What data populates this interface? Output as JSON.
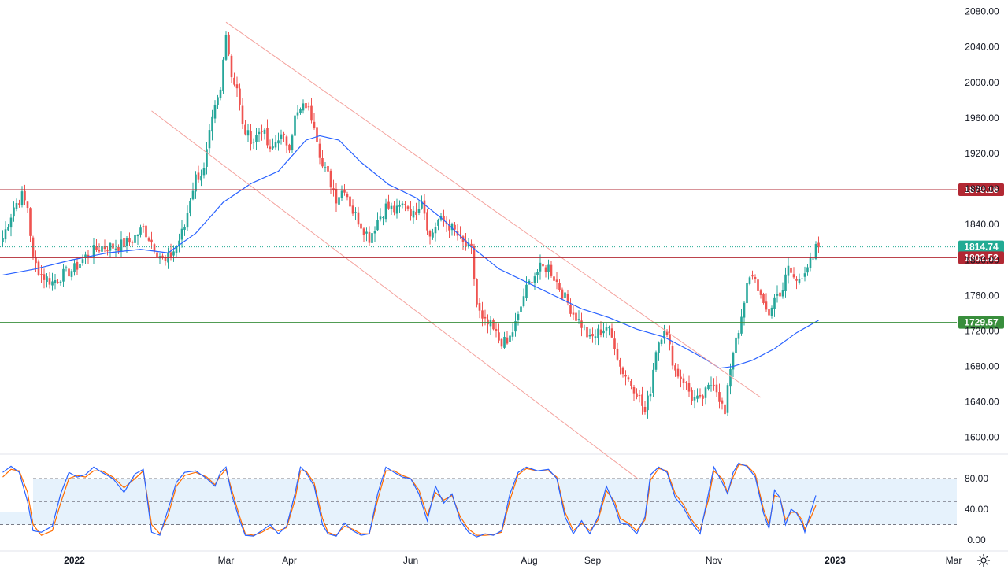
{
  "chart_data": {
    "type": "candlestick",
    "y_ticks": [
      1600,
      1640,
      1680,
      1720,
      1760,
      1800,
      1840,
      1880,
      1920,
      1960,
      2000,
      2040,
      2080
    ],
    "y_tick_labels": [
      "1600.00",
      "1640.00",
      "1680.00",
      "1720.00",
      "1760.00",
      "1800.00",
      "1840.00",
      "1880.00",
      "1920.00",
      "1960.00",
      "2000.00",
      "2040.00",
      "2080.00"
    ],
    "ylim": [
      1582,
      2093
    ],
    "x_labels": [
      {
        "label": "2022",
        "bold": true,
        "index": 26
      },
      {
        "label": "Mar",
        "bold": false,
        "index": 81
      },
      {
        "label": "Apr",
        "bold": false,
        "index": 104
      },
      {
        "label": "Jun",
        "bold": false,
        "index": 148
      },
      {
        "label": "Aug",
        "bold": false,
        "index": 191
      },
      {
        "label": "Sep",
        "bold": false,
        "index": 214
      },
      {
        "label": "Nov",
        "bold": false,
        "index": 258
      },
      {
        "label": "2023",
        "bold": true,
        "index": 302
      },
      {
        "label": "Mar",
        "bold": false,
        "index": 345
      }
    ],
    "anchors": [
      [
        0,
        1825
      ],
      [
        4,
        1860
      ],
      [
        7,
        1872
      ],
      [
        9,
        1860
      ],
      [
        11,
        1800
      ],
      [
        14,
        1783
      ],
      [
        18,
        1775
      ],
      [
        21,
        1782
      ],
      [
        26,
        1790
      ],
      [
        31,
        1807
      ],
      [
        36,
        1815
      ],
      [
        41,
        1815
      ],
      [
        46,
        1820
      ],
      [
        51,
        1836
      ],
      [
        56,
        1810
      ],
      [
        59,
        1797
      ],
      [
        63,
        1815
      ],
      [
        66,
        1838
      ],
      [
        68,
        1870
      ],
      [
        70,
        1893
      ],
      [
        73,
        1900
      ],
      [
        75,
        1940
      ],
      [
        77,
        1970
      ],
      [
        79,
        1990
      ],
      [
        81,
        2060
      ],
      [
        83,
        2008
      ],
      [
        85,
        1995
      ],
      [
        87,
        1950
      ],
      [
        89,
        1940
      ],
      [
        91,
        1935
      ],
      [
        94,
        1950
      ],
      [
        97,
        1920
      ],
      [
        100,
        1940
      ],
      [
        104,
        1930
      ],
      [
        106,
        1960
      ],
      [
        110,
        1975
      ],
      [
        113,
        1955
      ],
      [
        116,
        1905
      ],
      [
        118,
        1895
      ],
      [
        121,
        1870
      ],
      [
        124,
        1882
      ],
      [
        127,
        1855
      ],
      [
        130,
        1840
      ],
      [
        133,
        1825
      ],
      [
        136,
        1845
      ],
      [
        139,
        1860
      ],
      [
        143,
        1855
      ],
      [
        146,
        1865
      ],
      [
        149,
        1850
      ],
      [
        152,
        1870
      ],
      [
        155,
        1825
      ],
      [
        158,
        1845
      ],
      [
        161,
        1842
      ],
      [
        164,
        1832
      ],
      [
        167,
        1818
      ],
      [
        170,
        1810
      ],
      [
        172,
        1750
      ],
      [
        174,
        1730
      ],
      [
        177,
        1725
      ],
      [
        180,
        1710
      ],
      [
        183,
        1705
      ],
      [
        185,
        1720
      ],
      [
        187,
        1735
      ],
      [
        189,
        1760
      ],
      [
        192,
        1780
      ],
      [
        195,
        1790
      ],
      [
        198,
        1792
      ],
      [
        201,
        1775
      ],
      [
        204,
        1757
      ],
      [
        207,
        1740
      ],
      [
        210,
        1727
      ],
      [
        213,
        1710
      ],
      [
        216,
        1718
      ],
      [
        219,
        1725
      ],
      [
        222,
        1705
      ],
      [
        224,
        1680
      ],
      [
        227,
        1665
      ],
      [
        230,
        1652
      ],
      [
        233,
        1628
      ],
      [
        235,
        1655
      ],
      [
        237,
        1700
      ],
      [
        240,
        1725
      ],
      [
        242,
        1700
      ],
      [
        244,
        1675
      ],
      [
        247,
        1665
      ],
      [
        250,
        1645
      ],
      [
        253,
        1640
      ],
      [
        256,
        1655
      ],
      [
        258,
        1665
      ],
      [
        260,
        1645
      ],
      [
        262,
        1625
      ],
      [
        264,
        1680
      ],
      [
        266,
        1715
      ],
      [
        268,
        1730
      ],
      [
        270,
        1770
      ],
      [
        272,
        1785
      ],
      [
        274,
        1770
      ],
      [
        276,
        1745
      ],
      [
        278,
        1740
      ],
      [
        280,
        1757
      ],
      [
        283,
        1768
      ],
      [
        285,
        1790
      ],
      [
        288,
        1775
      ],
      [
        291,
        1790
      ],
      [
        293,
        1797
      ],
      [
        294,
        1798
      ],
      [
        295,
        1812
      ],
      [
        296,
        1815
      ]
    ],
    "ma_points": [
      [
        0,
        1783
      ],
      [
        12,
        1790
      ],
      [
        25,
        1800
      ],
      [
        38,
        1808
      ],
      [
        50,
        1812
      ],
      [
        60,
        1808
      ],
      [
        70,
        1830
      ],
      [
        80,
        1865
      ],
      [
        90,
        1886
      ],
      [
        100,
        1900
      ],
      [
        110,
        1935
      ],
      [
        115,
        1940
      ],
      [
        122,
        1935
      ],
      [
        130,
        1910
      ],
      [
        140,
        1885
      ],
      [
        150,
        1870
      ],
      [
        160,
        1845
      ],
      [
        170,
        1815
      ],
      [
        180,
        1790
      ],
      [
        190,
        1775
      ],
      [
        200,
        1760
      ],
      [
        210,
        1745
      ],
      [
        220,
        1735
      ],
      [
        230,
        1722
      ],
      [
        240,
        1713
      ],
      [
        248,
        1700
      ],
      [
        255,
        1688
      ],
      [
        260,
        1678
      ],
      [
        265,
        1680
      ],
      [
        272,
        1687
      ],
      [
        280,
        1700
      ],
      [
        288,
        1718
      ],
      [
        296,
        1732
      ]
    ],
    "levels": [
      {
        "label": "1879.16",
        "value": 1879.16,
        "color": "#b22833"
      },
      {
        "label": "1814.74",
        "value": 1814.74,
        "color": "#22ab94"
      },
      {
        "label": "1802.52",
        "value": 1802.52,
        "color": "#b22833"
      },
      {
        "label": "1729.57",
        "value": 1729.57,
        "color": "#388e3c"
      }
    ],
    "channel": {
      "upper": [
        [
          81,
          2068
        ],
        [
          275,
          1645
        ]
      ],
      "lower": [
        [
          54,
          1968
        ],
        [
          231,
          1552
        ]
      ]
    },
    "stochastic": {
      "y_ticks": [
        0,
        40,
        80
      ],
      "y_tick_labels": [
        "0.00",
        "40.00",
        "80.00"
      ],
      "bands": [
        20,
        50,
        80
      ],
      "k_points": [
        [
          0,
          88
        ],
        [
          3,
          96
        ],
        [
          6,
          88
        ],
        [
          9,
          50
        ],
        [
          11,
          12
        ],
        [
          14,
          10
        ],
        [
          18,
          18
        ],
        [
          21,
          60
        ],
        [
          24,
          88
        ],
        [
          27,
          82
        ],
        [
          30,
          85
        ],
        [
          33,
          95
        ],
        [
          36,
          88
        ],
        [
          40,
          80
        ],
        [
          44,
          62
        ],
        [
          48,
          86
        ],
        [
          51,
          92
        ],
        [
          54,
          10
        ],
        [
          57,
          6
        ],
        [
          60,
          40
        ],
        [
          63,
          75
        ],
        [
          66,
          88
        ],
        [
          70,
          90
        ],
        [
          74,
          80
        ],
        [
          77,
          70
        ],
        [
          79,
          88
        ],
        [
          81,
          95
        ],
        [
          83,
          60
        ],
        [
          86,
          25
        ],
        [
          88,
          6
        ],
        [
          91,
          5
        ],
        [
          94,
          12
        ],
        [
          97,
          20
        ],
        [
          100,
          8
        ],
        [
          103,
          18
        ],
        [
          106,
          60
        ],
        [
          108,
          95
        ],
        [
          110,
          88
        ],
        [
          113,
          70
        ],
        [
          116,
          20
        ],
        [
          118,
          8
        ],
        [
          121,
          5
        ],
        [
          124,
          22
        ],
        [
          127,
          12
        ],
        [
          130,
          6
        ],
        [
          133,
          8
        ],
        [
          136,
          60
        ],
        [
          139,
          95
        ],
        [
          142,
          88
        ],
        [
          145,
          82
        ],
        [
          148,
          80
        ],
        [
          151,
          60
        ],
        [
          154,
          25
        ],
        [
          157,
          70
        ],
        [
          160,
          48
        ],
        [
          163,
          60
        ],
        [
          166,
          25
        ],
        [
          169,
          10
        ],
        [
          172,
          4
        ],
        [
          175,
          8
        ],
        [
          178,
          6
        ],
        [
          181,
          12
        ],
        [
          184,
          60
        ],
        [
          187,
          88
        ],
        [
          190,
          95
        ],
        [
          194,
          90
        ],
        [
          198,
          92
        ],
        [
          201,
          80
        ],
        [
          204,
          30
        ],
        [
          207,
          8
        ],
        [
          210,
          25
        ],
        [
          213,
          8
        ],
        [
          216,
          30
        ],
        [
          219,
          70
        ],
        [
          222,
          45
        ],
        [
          224,
          22
        ],
        [
          227,
          20
        ],
        [
          230,
          8
        ],
        [
          233,
          30
        ],
        [
          235,
          85
        ],
        [
          238,
          95
        ],
        [
          241,
          88
        ],
        [
          244,
          55
        ],
        [
          247,
          42
        ],
        [
          250,
          22
        ],
        [
          253,
          8
        ],
        [
          256,
          60
        ],
        [
          258,
          95
        ],
        [
          261,
          75
        ],
        [
          263,
          60
        ],
        [
          265,
          88
        ],
        [
          267,
          100
        ],
        [
          270,
          96
        ],
        [
          273,
          82
        ],
        [
          276,
          35
        ],
        [
          278,
          15
        ],
        [
          280,
          65
        ],
        [
          282,
          55
        ],
        [
          284,
          20
        ],
        [
          286,
          40
        ],
        [
          288,
          35
        ],
        [
          290,
          22
        ],
        [
          291,
          10
        ],
        [
          293,
          35
        ],
        [
          295,
          58
        ]
      ],
      "d_points": [
        [
          0,
          82
        ],
        [
          3,
          92
        ],
        [
          6,
          90
        ],
        [
          9,
          62
        ],
        [
          11,
          20
        ],
        [
          14,
          6
        ],
        [
          18,
          12
        ],
        [
          21,
          48
        ],
        [
          24,
          80
        ],
        [
          27,
          84
        ],
        [
          30,
          82
        ],
        [
          33,
          90
        ],
        [
          36,
          90
        ],
        [
          40,
          82
        ],
        [
          44,
          68
        ],
        [
          48,
          80
        ],
        [
          51,
          90
        ],
        [
          54,
          20
        ],
        [
          57,
          8
        ],
        [
          60,
          32
        ],
        [
          63,
          70
        ],
        [
          66,
          84
        ],
        [
          70,
          88
        ],
        [
          74,
          82
        ],
        [
          77,
          72
        ],
        [
          79,
          84
        ],
        [
          81,
          92
        ],
        [
          83,
          66
        ],
        [
          86,
          30
        ],
        [
          88,
          8
        ],
        [
          91,
          6
        ],
        [
          94,
          10
        ],
        [
          97,
          16
        ],
        [
          100,
          12
        ],
        [
          103,
          16
        ],
        [
          106,
          52
        ],
        [
          108,
          90
        ],
        [
          110,
          90
        ],
        [
          113,
          74
        ],
        [
          116,
          28
        ],
        [
          118,
          10
        ],
        [
          121,
          6
        ],
        [
          124,
          18
        ],
        [
          127,
          14
        ],
        [
          130,
          8
        ],
        [
          133,
          8
        ],
        [
          136,
          52
        ],
        [
          139,
          90
        ],
        [
          142,
          90
        ],
        [
          145,
          84
        ],
        [
          148,
          80
        ],
        [
          151,
          65
        ],
        [
          154,
          32
        ],
        [
          157,
          62
        ],
        [
          160,
          52
        ],
        [
          163,
          58
        ],
        [
          166,
          30
        ],
        [
          169,
          14
        ],
        [
          172,
          6
        ],
        [
          175,
          6
        ],
        [
          178,
          7
        ],
        [
          181,
          10
        ],
        [
          184,
          52
        ],
        [
          187,
          85
        ],
        [
          190,
          93
        ],
        [
          194,
          90
        ],
        [
          198,
          90
        ],
        [
          201,
          82
        ],
        [
          204,
          36
        ],
        [
          207,
          12
        ],
        [
          210,
          22
        ],
        [
          213,
          12
        ],
        [
          216,
          26
        ],
        [
          219,
          64
        ],
        [
          222,
          50
        ],
        [
          224,
          28
        ],
        [
          227,
          22
        ],
        [
          230,
          12
        ],
        [
          233,
          26
        ],
        [
          235,
          78
        ],
        [
          238,
          93
        ],
        [
          241,
          90
        ],
        [
          244,
          60
        ],
        [
          247,
          46
        ],
        [
          250,
          26
        ],
        [
          253,
          12
        ],
        [
          256,
          52
        ],
        [
          258,
          90
        ],
        [
          261,
          80
        ],
        [
          263,
          62
        ],
        [
          265,
          82
        ],
        [
          267,
          98
        ],
        [
          270,
          97
        ],
        [
          273,
          86
        ],
        [
          276,
          40
        ],
        [
          278,
          20
        ],
        [
          280,
          58
        ],
        [
          282,
          55
        ],
        [
          284,
          26
        ],
        [
          286,
          36
        ],
        [
          288,
          36
        ],
        [
          290,
          26
        ],
        [
          291,
          14
        ],
        [
          293,
          28
        ],
        [
          295,
          45
        ]
      ]
    }
  },
  "icons": {
    "settings": "gear-icon"
  }
}
